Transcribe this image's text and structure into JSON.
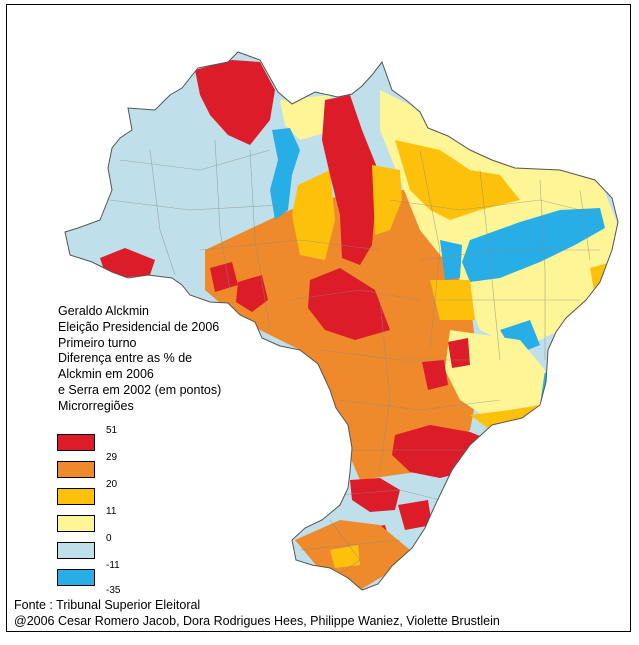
{
  "legend": {
    "lines": [
      "Geraldo Alckmin",
      "Eleição Presidencial de 2006",
      "Primeiro turno",
      "Diferença entre as % de",
      "Alckmin em 2006",
      "e Serra em 2002 (em pontos)",
      "Microrregiões"
    ],
    "classes": [
      {
        "color": "#dc1c28",
        "upper": "51",
        "lower": "29"
      },
      {
        "color": "#ee8a2c",
        "upper": "29",
        "lower": "20"
      },
      {
        "color": "#fdc10c",
        "upper": "20",
        "lower": "11"
      },
      {
        "color": "#fdf596",
        "upper": "11",
        "lower": "0"
      },
      {
        "color": "#bfe0ea",
        "upper": "0",
        "lower": "-11"
      },
      {
        "color": "#28aee6",
        "upper": "-11",
        "lower": "-35"
      }
    ],
    "ticks": [
      "51",
      "29",
      "20",
      "11",
      "0",
      "-11",
      "-35"
    ]
  },
  "footer": {
    "source": "Fonte : Tribunal Superior Eleitoral",
    "credits": "@2006 Cesar Romero Jacob, Dora Rodrigues Hees, Philippe Waniez, Violette Brustlein"
  },
  "colors": {
    "red": "#dc1c28",
    "orange": "#ee8a2c",
    "gold": "#fdc10c",
    "lightyellow": "#fdf596",
    "lightblue": "#bfe0ea",
    "blue": "#28aee6",
    "border": "#8a8a8a"
  }
}
